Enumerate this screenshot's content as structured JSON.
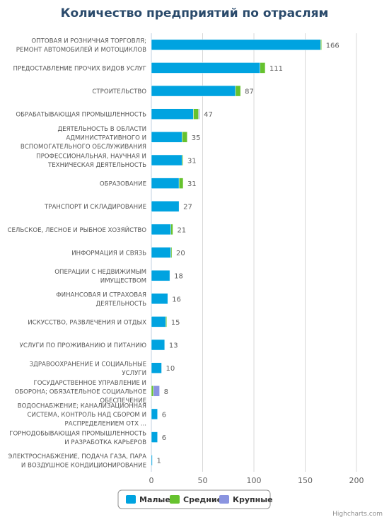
{
  "chart_data": {
    "type": "bar",
    "orientation": "horizontal",
    "stacked": true,
    "title": "Количество предприятий по отраслям",
    "categories": [
      [
        "ОПТОВАЯ И РОЗНИЧНАЯ ТОРГОВЛЯ;",
        "РЕМОНТ АВТОМОБИЛЕЙ И МОТОЦИКЛОВ"
      ],
      [
        "ПРЕДОСТАВЛЕНИЕ ПРОЧИХ ВИДОВ УСЛУГ"
      ],
      [
        "СТРОИТЕЛЬСТВО"
      ],
      [
        "ОБРАБАТЫВАЮЩАЯ ПРОМЫШЛЕННОСТЬ"
      ],
      [
        "ДЕЯТЕЛЬНОСТЬ В ОБЛАСТИ",
        "АДМИНИСТРАТИВНОГО И",
        "ВСПОМОГАТЕЛЬНОГО ОБСЛУЖИВАНИЯ"
      ],
      [
        "ПРОФЕССИОНАЛЬНАЯ, НАУЧНАЯ И",
        "ТЕХНИЧЕСКАЯ ДЕЯТЕЛЬНОСТЬ"
      ],
      [
        "ОБРАЗОВАНИЕ"
      ],
      [
        "ТРАНСПОРТ И СКЛАДИРОВАНИЕ"
      ],
      [
        "СЕЛЬСКОЕ, ЛЕСНОЕ И РЫБНОЕ ХОЗЯЙСТВО"
      ],
      [
        "ИНФОРМАЦИЯ И СВЯЗЬ"
      ],
      [
        "ОПЕРАЦИИ С НЕДВИЖИМЫМ",
        "ИМУЩЕСТВОМ"
      ],
      [
        "ФИНАНСОВАЯ И СТРАХОВАЯ",
        "ДЕЯТЕЛЬНОСТЬ"
      ],
      [
        "ИСКУССТВО, РАЗВЛЕЧЕНИЯ И ОТДЫХ"
      ],
      [
        "УСЛУГИ ПО ПРОЖИВАНИЮ И ПИТАНИЮ"
      ],
      [
        "ЗДРАВООХРАНЕНИЕ И СОЦИАЛЬНЫЕ",
        "УСЛУГИ"
      ],
      [
        "ГОСУДАРСТВЕННОЕ УПРАВЛЕНИЕ И",
        "ОБОРОНА; ОБЯЗАТЕЛЬНОЕ СОЦИАЛЬНОЕ",
        "ОБЕСПЕЧЕНИЕ"
      ],
      [
        "ВОДОСНАБЖЕНИЕ; КАНАЛИЗАЦИОННАЯ",
        "СИСТЕМА, КОНТРОЛЬ НАД СБОРОМ И",
        "РАСПРЕДЕЛЕНИЕМ ОТХ ..."
      ],
      [
        "ГОРНОДОБЫВАЮЩАЯ ПРОМЫШЛЕННОСТЬ",
        "И РАЗРАБОТКА КАРЬЕРОВ"
      ],
      [
        "ЭЛЕКТРОСНАБЖЕНИЕ, ПОДАЧА ГАЗА, ПАРА",
        "И ВОЗДУШНОЕ КОНДИЦИОНИРОВАНИЕ"
      ]
    ],
    "series": [
      {
        "name": "Малые",
        "color": "#00a3e0",
        "values": [
          165,
          106,
          82,
          41,
          30,
          30,
          27,
          27,
          19,
          19,
          18,
          16,
          14,
          13,
          10,
          0,
          6,
          6,
          1
        ]
      },
      {
        "name": "Средние",
        "color": "#66c22e",
        "values": [
          1,
          5,
          5,
          5,
          5,
          1,
          4,
          0,
          2,
          1,
          0,
          0,
          1,
          0,
          0,
          2,
          0,
          0,
          0
        ]
      },
      {
        "name": "Крупные",
        "color": "#8a94e0",
        "values": [
          0,
          0,
          0,
          1,
          0,
          0,
          0,
          0,
          0,
          0,
          0,
          0,
          0,
          0,
          0,
          6,
          0,
          0,
          0
        ]
      }
    ],
    "totals": [
      "166",
      "111",
      "87",
      "47",
      "35",
      "31",
      "31",
      "27",
      "21",
      "20",
      "18",
      "16",
      "15",
      "13",
      "10",
      "8",
      "6",
      "6",
      "1"
    ],
    "x_ticks": [
      "0",
      "50",
      "100",
      "150",
      "200"
    ],
    "xlim": [
      0,
      200
    ],
    "grid": true,
    "legend_position": "bottom-center",
    "credits": "Highcharts.com"
  }
}
